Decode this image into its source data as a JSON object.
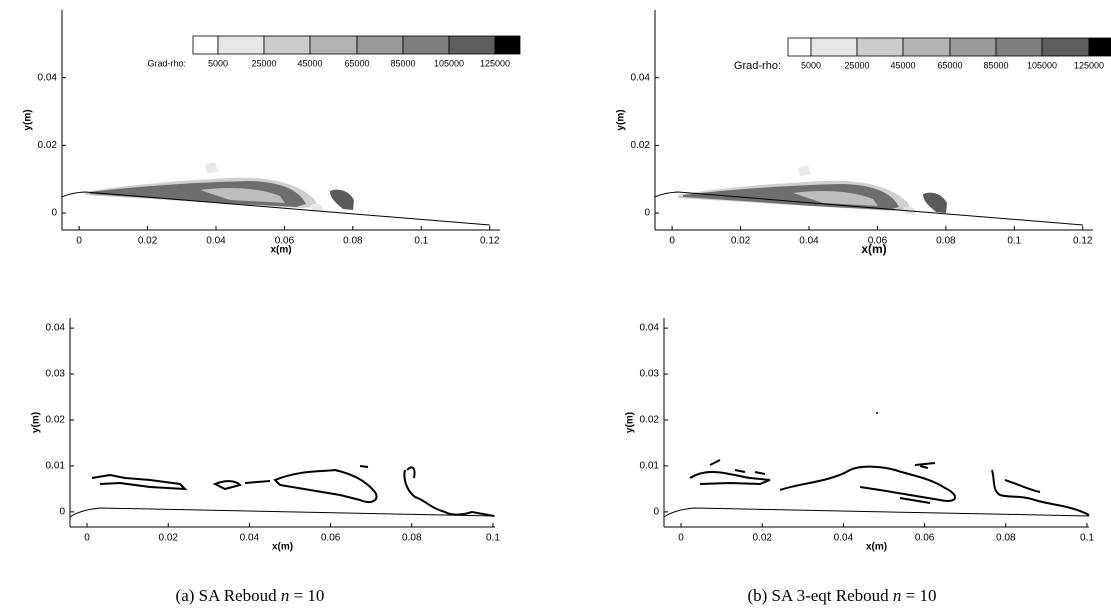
{
  "chart_data": [
    {
      "type": "contour",
      "xlabel": "x(m)",
      "ylabel": "y(m)",
      "xlim": [
        -0.005,
        0.123
      ],
      "ylim": [
        -0.005,
        0.06
      ],
      "xticks": [
        0,
        0.02,
        0.04,
        0.06,
        0.08,
        0.1,
        0.12
      ],
      "yticks": [
        0,
        0.02,
        0.04
      ],
      "colorbar": {
        "label": "Grad-rho:",
        "levels": [
          5000,
          25000,
          45000,
          65000,
          85000,
          105000,
          125000
        ],
        "colors": [
          "#ffffff",
          "#e6e6e6",
          "#cccccc",
          "#b3b3b3",
          "#999999",
          "#7f7f7f",
          "#5e5e5e",
          "#000000"
        ]
      }
    },
    {
      "type": "contour",
      "xlabel": "x(m)",
      "ylabel": "y(m)",
      "xlim": [
        -0.005,
        0.123
      ],
      "ylim": [
        -0.005,
        0.06
      ],
      "xticks": [
        0,
        0.02,
        0.04,
        0.06,
        0.08,
        0.1,
        0.12
      ],
      "yticks": [
        0,
        0.02,
        0.04
      ],
      "colorbar": {
        "label": "Grad-rho:",
        "levels": [
          5000,
          25000,
          45000,
          65000,
          85000,
          105000,
          125000
        ],
        "colors": [
          "#ffffff",
          "#e6e6e6",
          "#cccccc",
          "#b3b3b3",
          "#999999",
          "#7f7f7f",
          "#5e5e5e",
          "#000000"
        ]
      }
    },
    {
      "type": "isoline",
      "xlabel": "x(m)",
      "ylabel": "y(m)",
      "xlim": [
        -0.0042,
        0.1005
      ],
      "ylim": [
        -0.0033,
        0.0422
      ],
      "xticks": [
        0,
        0.02,
        0.04,
        0.06,
        0.08,
        0.1
      ],
      "yticks": [
        0,
        0.01,
        0.02,
        0.03,
        0.04
      ]
    },
    {
      "type": "isoline",
      "xlabel": "x(m)",
      "ylabel": "y(m)",
      "xlim": [
        -0.0042,
        0.1005
      ],
      "ylim": [
        -0.0033,
        0.0422
      ],
      "xticks": [
        0,
        0.02,
        0.04,
        0.06,
        0.08,
        0.1
      ],
      "yticks": [
        0,
        0.01,
        0.02,
        0.03,
        0.04
      ]
    }
  ],
  "captions": [
    {
      "text": "(a) SA Reboud",
      "var": "n",
      "rest": "= 10"
    },
    {
      "text": "(b) SA 3-eqt Reboud",
      "var": "n",
      "rest": "= 10"
    }
  ]
}
